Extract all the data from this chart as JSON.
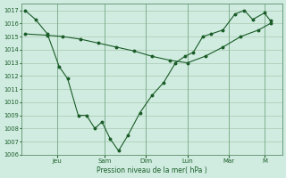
{
  "bg_color": "#d0ece0",
  "grid_color": "#a8c8b0",
  "line_color": "#1a5c28",
  "xlabel": "Pression niveau de la mer( hPa )",
  "ylim": [
    1006,
    1017.5
  ],
  "yticks": [
    1006,
    1007,
    1008,
    1009,
    1010,
    1011,
    1012,
    1013,
    1014,
    1015,
    1016,
    1017
  ],
  "day_labels": [
    "Jeu",
    "Sam",
    "Dim",
    "Lun",
    "Mar",
    "M"
  ],
  "day_positions": [
    3.0,
    7.0,
    10.5,
    14.0,
    17.5,
    20.5
  ],
  "xlim": [
    0,
    22
  ],
  "jagged_x": [
    0.3,
    1.2,
    2.2,
    3.2,
    3.9,
    4.8,
    5.5,
    6.2,
    6.8,
    7.5,
    8.2,
    9.0,
    10.0,
    11.0,
    12.0,
    13.0,
    13.8,
    14.5,
    15.3,
    16.0,
    17.0,
    18.0,
    18.8,
    19.5,
    20.5,
    21.0
  ],
  "jagged_y": [
    1017.0,
    1016.3,
    1015.2,
    1012.7,
    1011.8,
    1009.0,
    1009.0,
    1008.0,
    1008.5,
    1007.2,
    1006.3,
    1007.5,
    1009.2,
    1010.5,
    1011.5,
    1013.0,
    1013.5,
    1013.8,
    1015.0,
    1015.2,
    1015.5,
    1016.7,
    1017.0,
    1016.3,
    1016.8,
    1016.2
  ],
  "smooth_x": [
    0.3,
    2.2,
    3.5,
    5.0,
    6.5,
    8.0,
    9.5,
    11.0,
    12.5,
    14.0,
    15.5,
    17.0,
    18.5,
    20.0,
    21.0
  ],
  "smooth_y": [
    1015.2,
    1015.1,
    1015.0,
    1014.8,
    1014.5,
    1014.2,
    1013.9,
    1013.5,
    1013.2,
    1013.0,
    1013.5,
    1014.2,
    1015.0,
    1015.5,
    1016.0
  ]
}
